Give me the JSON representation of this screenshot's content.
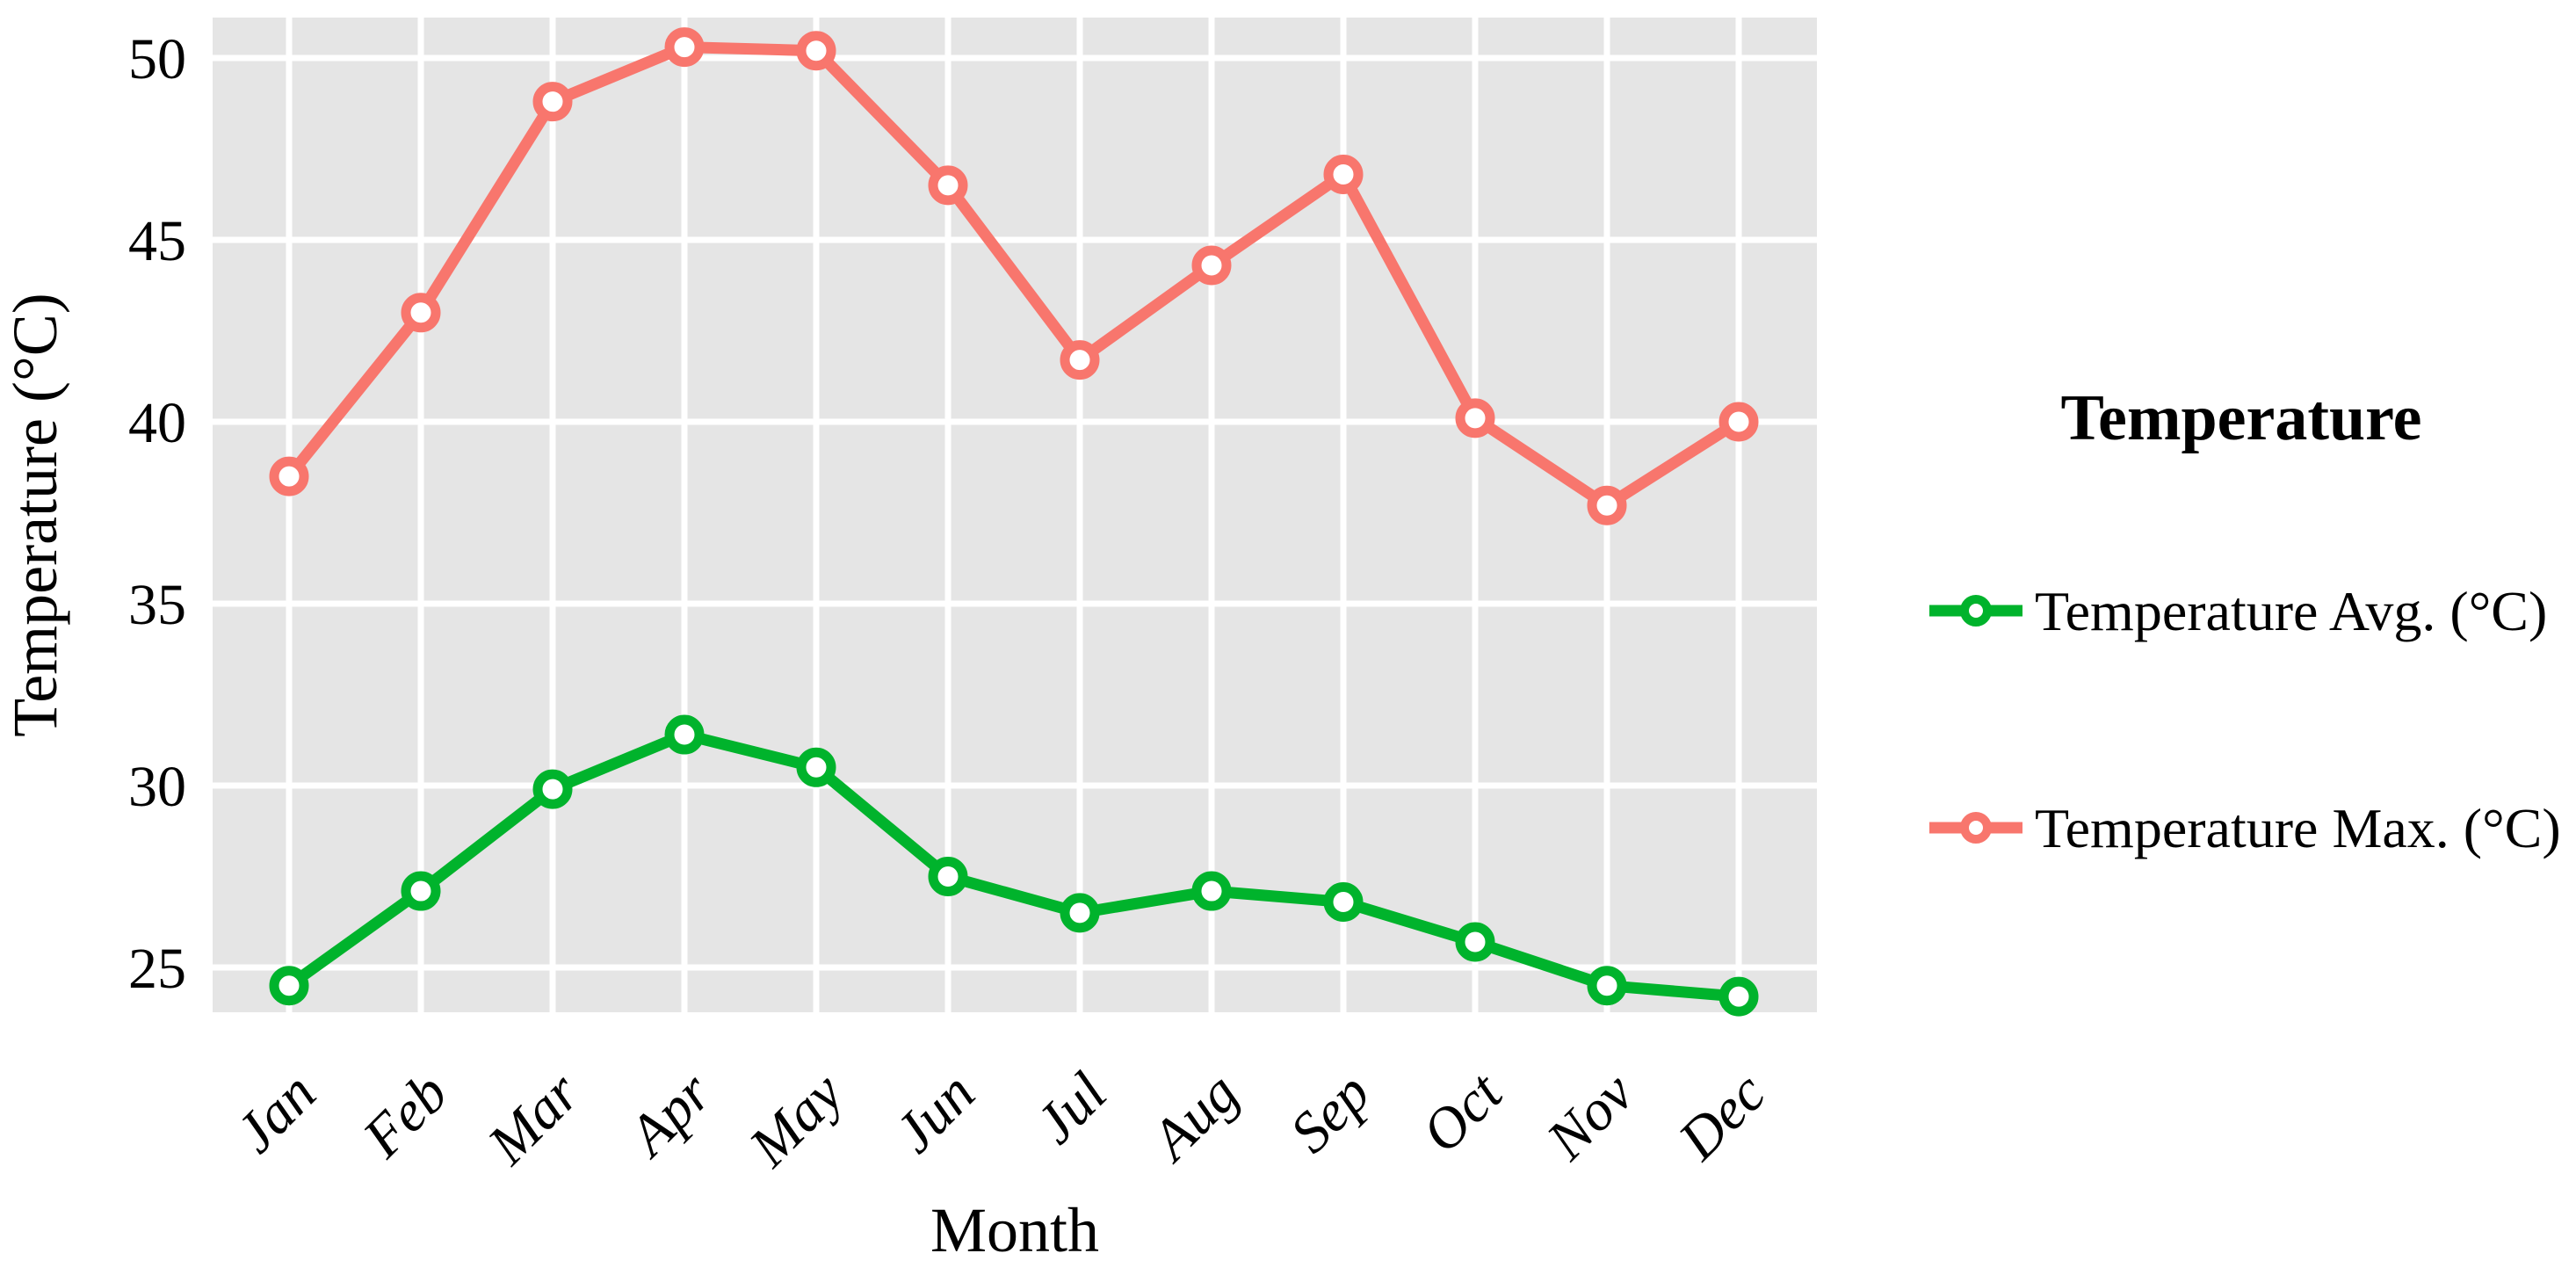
{
  "chart_data": {
    "type": "line",
    "categories": [
      "Jan",
      "Feb",
      "Mar",
      "Apr",
      "May",
      "Jun",
      "Jul",
      "Aug",
      "Sep",
      "Oct",
      "Nov",
      "Dec"
    ],
    "series": [
      {
        "name": "Temperature Avg. (°C)",
        "color": "#00B32C",
        "values": [
          24.5,
          27.1,
          29.9,
          31.4,
          30.5,
          27.5,
          26.5,
          27.1,
          26.8,
          25.7,
          24.5,
          24.2
        ]
      },
      {
        "name": "Temperature Max. (°C)",
        "color": "#F8766D",
        "values": [
          38.5,
          43.0,
          48.8,
          50.3,
          50.2,
          46.5,
          41.7,
          44.3,
          46.8,
          40.1,
          37.7,
          40.0
        ]
      }
    ],
    "xlabel": "Month",
    "ylabel": "Temperature (°C)",
    "y_ticks": [
      25,
      30,
      35,
      40,
      45,
      50
    ],
    "ylim": [
      23.8,
      51.1
    ],
    "grid": true,
    "legend": {
      "title": "Temperature",
      "position": "right"
    },
    "panel_background": "#E5E5E5",
    "gridline_color": "#FFFFFF",
    "marker_fill": "#FFFFFF",
    "text_color": "#000000"
  }
}
